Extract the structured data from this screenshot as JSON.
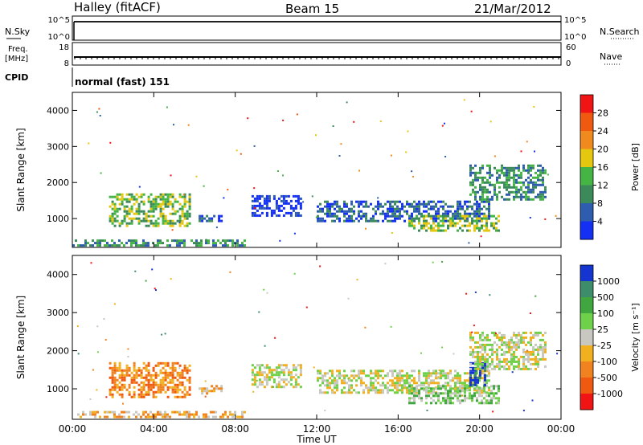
{
  "header": {
    "station": "Halley (fitACF)",
    "beam": "Beam 15",
    "date": "21/Mar/2012"
  },
  "strips": {
    "nsky_label": "N.Sky",
    "nsky_ticks": [
      "10^5",
      "10^0"
    ],
    "nsearch_label": "N.Search",
    "nsearch_ticks": [
      "10^5",
      "10^0"
    ],
    "freq_label": "Freq.",
    "freq_unit": "[MHz]",
    "freq_ticks": [
      "18",
      "8"
    ],
    "nave_label": "Nave",
    "nave_ticks": [
      "60",
      "0"
    ],
    "cpid_label": "CPID",
    "cpid_value": "normal (fast) 151"
  },
  "chart_data": [
    {
      "type": "heatmap",
      "parameter": "Power",
      "ylabel": "Slant Range [km]",
      "yticks": [
        "4000",
        "3000",
        "2000",
        "1000"
      ],
      "ylim": [
        200,
        4500
      ],
      "xlim": [
        0,
        24
      ],
      "colorbar_label": "Power [dB]",
      "colorbar_ticks": [
        "28",
        "24",
        "20",
        "16",
        "12",
        "8",
        "4"
      ],
      "colors": [
        "#1530f5",
        "#2e5db0",
        "#3c8a5a",
        "#44b545",
        "#e6c70f",
        "#f08a1e",
        "#f05a10",
        "#f01414"
      ],
      "echo_regions": [
        {
          "t_start": 1.8,
          "t_end": 5.8,
          "range_start": 800,
          "range_end": 1700,
          "level": 3
        },
        {
          "t_start": 6.2,
          "t_end": 7.3,
          "range_start": 900,
          "range_end": 1100,
          "level": 1
        },
        {
          "t_start": 8.8,
          "t_end": 11.2,
          "range_start": 1050,
          "range_end": 1650,
          "level": 0
        },
        {
          "t_start": 12.0,
          "t_end": 20.5,
          "range_start": 900,
          "range_end": 1500,
          "level": 1
        },
        {
          "t_start": 16.5,
          "t_end": 21.0,
          "range_start": 650,
          "range_end": 1100,
          "level": 3
        },
        {
          "t_start": 19.5,
          "t_end": 23.2,
          "range_start": 1500,
          "range_end": 2500,
          "level": 2
        },
        {
          "t_start": 0,
          "t_end": 8.5,
          "range_start": 250,
          "range_end": 420,
          "level": 2
        }
      ]
    },
    {
      "type": "heatmap",
      "parameter": "Velocity",
      "ylabel": "Slant Range [km]",
      "yticks": [
        "4000",
        "3000",
        "2000",
        "1000"
      ],
      "ylim": [
        200,
        4500
      ],
      "xlim": [
        0,
        24
      ],
      "xticks": [
        "00:00",
        "04:00",
        "08:00",
        "12:00",
        "16:00",
        "20:00",
        "00:00"
      ],
      "xlabel": "Time UT",
      "colorbar_label": "Velocity [m s⁻¹]",
      "colorbar_ticks": [
        "1000",
        "500",
        "100",
        "25",
        "-25",
        "-100",
        "-500",
        "-1000"
      ],
      "colors": [
        "#1535d0",
        "#3d8c6a",
        "#3fa640",
        "#6fd14a",
        "#c8c8c0",
        "#f0b020",
        "#f08220",
        "#f05a10",
        "#f01414"
      ],
      "echo_regions": [
        {
          "t_start": 1.8,
          "t_end": 5.8,
          "range_start": 800,
          "range_end": 1700,
          "level": 6
        },
        {
          "t_start": 6.2,
          "t_end": 7.3,
          "range_start": 900,
          "range_end": 1100,
          "level": 5
        },
        {
          "t_start": 8.8,
          "t_end": 11.2,
          "range_start": 1050,
          "range_end": 1650,
          "level": 4
        },
        {
          "t_start": 12.0,
          "t_end": 20.5,
          "range_start": 900,
          "range_end": 1500,
          "level": 4
        },
        {
          "t_start": 16.5,
          "t_end": 21.0,
          "range_start": 650,
          "range_end": 1100,
          "level": 3
        },
        {
          "t_start": 19.5,
          "t_end": 20.3,
          "range_start": 1100,
          "range_end": 1700,
          "level": 0
        },
        {
          "t_start": 19.5,
          "t_end": 23.2,
          "range_start": 1500,
          "range_end": 2500,
          "level": 4
        },
        {
          "t_start": 0,
          "t_end": 8.5,
          "range_start": 250,
          "range_end": 420,
          "level": 5
        }
      ]
    }
  ]
}
